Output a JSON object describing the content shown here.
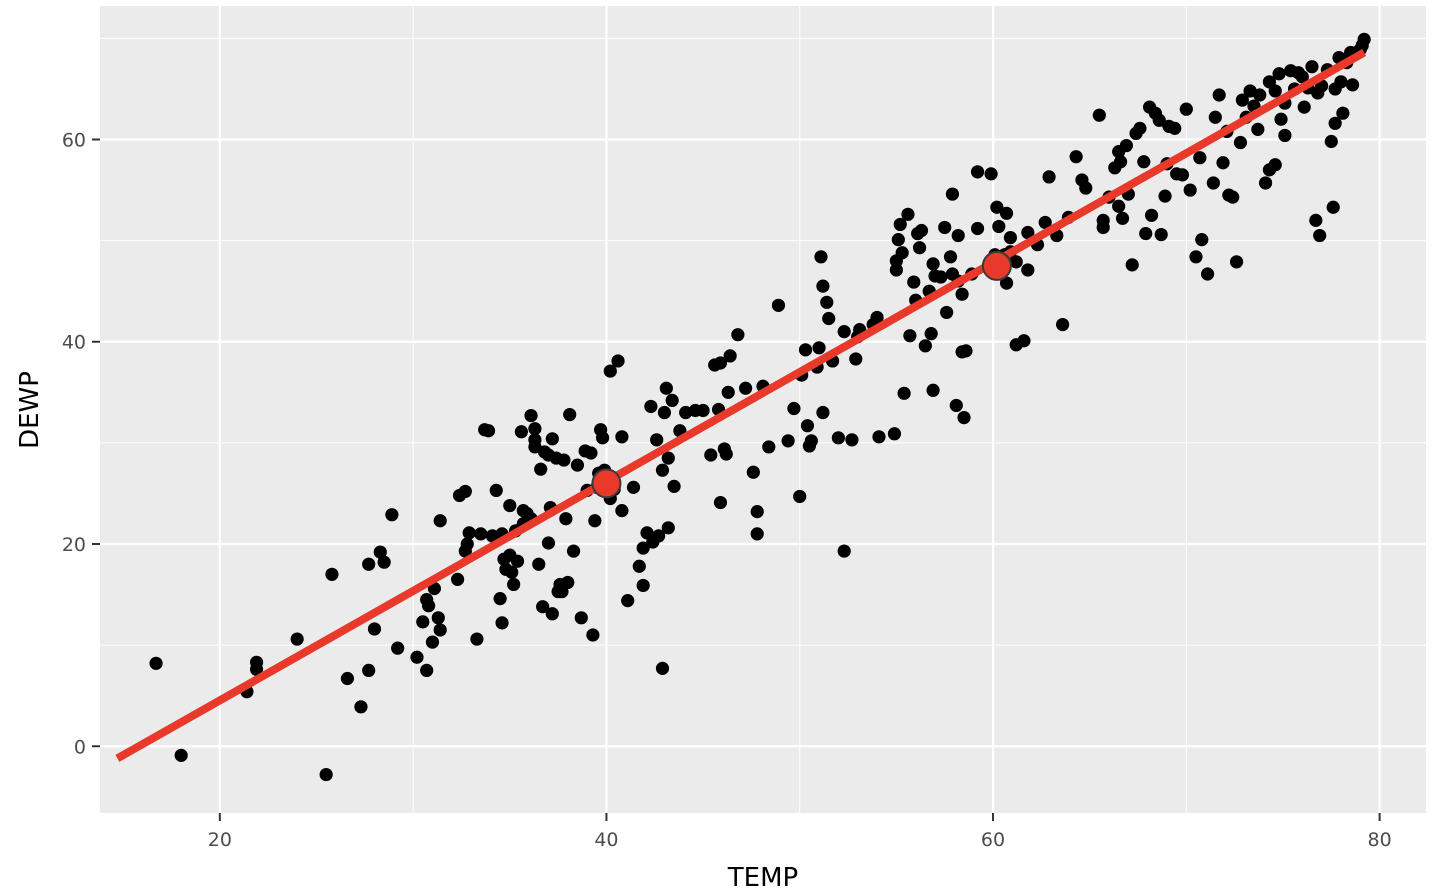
{
  "chart_data": {
    "type": "scatter",
    "title": "",
    "xlabel": "TEMP",
    "ylabel": "DEWP",
    "xlim": [
      13.8,
      82.4
    ],
    "ylim": [
      -6.6,
      73.2
    ],
    "x_ticks": [
      20,
      40,
      60,
      80
    ],
    "y_ticks": [
      0,
      20,
      40,
      60
    ],
    "x_tick_labels": [
      "20",
      "40",
      "60",
      "80"
    ],
    "y_tick_labels": [
      "0",
      "20",
      "40",
      "60"
    ],
    "grid": true,
    "legend": "none",
    "colors": {
      "panel_background": "#ebebeb",
      "grid": "#ffffff",
      "points": "#000000",
      "fit_line": "#e8392a",
      "highlight_points": "#e8392a"
    },
    "fit_line": {
      "x": [
        14.7,
        79.2
      ],
      "y": [
        -1.2,
        68.6
      ]
    },
    "highlight_points": [
      {
        "x": 40.0,
        "y": 26.0
      },
      {
        "x": 60.2,
        "y": 47.5
      }
    ],
    "series": [
      {
        "points": [
          [
            16.7,
            8.2
          ],
          [
            18.0,
            -0.9
          ],
          [
            21.4,
            5.4
          ],
          [
            21.9,
            8.3
          ],
          [
            21.9,
            7.6
          ],
          [
            24.0,
            10.6
          ],
          [
            25.5,
            -2.8
          ],
          [
            25.8,
            17.0
          ],
          [
            26.6,
            6.7
          ],
          [
            27.3,
            3.9
          ],
          [
            27.7,
            18.0
          ],
          [
            27.7,
            7.5
          ],
          [
            28.0,
            11.6
          ],
          [
            28.3,
            19.2
          ],
          [
            28.5,
            18.2
          ],
          [
            28.9,
            22.9
          ],
          [
            29.2,
            9.7
          ],
          [
            30.2,
            8.8
          ],
          [
            30.5,
            12.3
          ],
          [
            30.7,
            14.5
          ],
          [
            30.7,
            7.5
          ],
          [
            30.8,
            13.9
          ],
          [
            31.1,
            15.6
          ],
          [
            31.0,
            10.3
          ],
          [
            31.3,
            12.7
          ],
          [
            31.4,
            11.5
          ],
          [
            31.4,
            22.3
          ],
          [
            32.3,
            16.5
          ],
          [
            32.4,
            24.8
          ],
          [
            32.7,
            25.2
          ],
          [
            32.7,
            19.3
          ],
          [
            32.8,
            20.0
          ],
          [
            32.9,
            21.1
          ],
          [
            33.3,
            10.6
          ],
          [
            33.5,
            21.0
          ],
          [
            33.7,
            31.3
          ],
          [
            33.9,
            31.2
          ],
          [
            34.1,
            20.8
          ],
          [
            34.3,
            25.3
          ],
          [
            34.5,
            14.6
          ],
          [
            34.6,
            21.0
          ],
          [
            34.6,
            12.2
          ],
          [
            34.7,
            18.5
          ],
          [
            34.8,
            17.5
          ],
          [
            35.0,
            23.8
          ],
          [
            35.0,
            18.9
          ],
          [
            35.1,
            17.2
          ],
          [
            35.2,
            16.0
          ],
          [
            35.3,
            21.3
          ],
          [
            35.4,
            18.3
          ],
          [
            35.6,
            31.1
          ],
          [
            35.7,
            22.0
          ],
          [
            35.7,
            23.3
          ],
          [
            35.9,
            23.0
          ],
          [
            36.1,
            22.5
          ],
          [
            36.1,
            32.7
          ],
          [
            36.3,
            31.4
          ],
          [
            36.3,
            29.6
          ],
          [
            36.3,
            30.3
          ],
          [
            36.5,
            18.0
          ],
          [
            36.6,
            27.4
          ],
          [
            36.7,
            13.8
          ],
          [
            36.8,
            29.1
          ],
          [
            37.0,
            28.8
          ],
          [
            37.0,
            20.1
          ],
          [
            37.1,
            23.6
          ],
          [
            37.2,
            13.1
          ],
          [
            37.2,
            30.4
          ],
          [
            37.4,
            28.5
          ],
          [
            37.5,
            15.3
          ],
          [
            37.6,
            16.0
          ],
          [
            37.7,
            15.3
          ],
          [
            37.8,
            28.3
          ],
          [
            37.9,
            22.5
          ],
          [
            38.0,
            16.2
          ],
          [
            38.1,
            32.8
          ],
          [
            38.3,
            19.3
          ],
          [
            38.5,
            27.8
          ],
          [
            38.7,
            12.7
          ],
          [
            38.9,
            29.2
          ],
          [
            39.0,
            25.3
          ],
          [
            39.2,
            29.0
          ],
          [
            39.3,
            11.0
          ],
          [
            39.4,
            22.3
          ],
          [
            39.5,
            25.6
          ],
          [
            39.6,
            27.0
          ],
          [
            39.7,
            31.3
          ],
          [
            39.8,
            30.5
          ],
          [
            39.9,
            27.3
          ],
          [
            40.1,
            26.5
          ],
          [
            40.2,
            24.5
          ],
          [
            40.2,
            37.1
          ],
          [
            40.4,
            25.4
          ],
          [
            40.6,
            38.1
          ],
          [
            40.8,
            23.3
          ],
          [
            40.8,
            30.6
          ],
          [
            41.1,
            14.4
          ],
          [
            41.4,
            25.6
          ],
          [
            41.7,
            17.8
          ],
          [
            41.9,
            19.6
          ],
          [
            41.9,
            15.9
          ],
          [
            42.1,
            21.1
          ],
          [
            42.3,
            33.6
          ],
          [
            42.4,
            20.2
          ],
          [
            42.6,
            30.3
          ],
          [
            42.7,
            20.8
          ],
          [
            42.9,
            27.3
          ],
          [
            42.9,
            7.7
          ],
          [
            43.0,
            33.0
          ],
          [
            43.2,
            21.6
          ],
          [
            43.1,
            35.4
          ],
          [
            43.2,
            28.5
          ],
          [
            43.5,
            25.7
          ],
          [
            43.4,
            34.2
          ],
          [
            43.8,
            31.2
          ],
          [
            44.1,
            33.0
          ],
          [
            44.6,
            33.2
          ],
          [
            45.0,
            33.2
          ],
          [
            45.4,
            28.8
          ],
          [
            45.6,
            37.7
          ],
          [
            45.8,
            33.3
          ],
          [
            45.9,
            24.1
          ],
          [
            45.9,
            37.9
          ],
          [
            46.1,
            29.4
          ],
          [
            46.2,
            28.9
          ],
          [
            46.3,
            35.0
          ],
          [
            46.4,
            38.6
          ],
          [
            46.8,
            40.7
          ],
          [
            47.2,
            35.4
          ],
          [
            47.6,
            27.1
          ],
          [
            47.8,
            23.2
          ],
          [
            47.8,
            21.0
          ],
          [
            48.1,
            35.6
          ],
          [
            48.4,
            29.6
          ],
          [
            48.9,
            43.6
          ],
          [
            49.4,
            30.2
          ],
          [
            49.7,
            33.4
          ],
          [
            50.0,
            24.7
          ],
          [
            50.1,
            36.7
          ],
          [
            50.3,
            39.2
          ],
          [
            50.4,
            31.7
          ],
          [
            50.5,
            29.7
          ],
          [
            50.6,
            30.2
          ],
          [
            50.9,
            37.5
          ],
          [
            51.0,
            39.4
          ],
          [
            51.2,
            33.0
          ],
          [
            51.1,
            48.4
          ],
          [
            51.2,
            45.5
          ],
          [
            51.4,
            43.9
          ],
          [
            51.5,
            42.3
          ],
          [
            51.7,
            38.1
          ],
          [
            52.0,
            30.5
          ],
          [
            52.3,
            41.0
          ],
          [
            52.3,
            19.3
          ],
          [
            52.7,
            30.3
          ],
          [
            52.9,
            38.3
          ],
          [
            53.0,
            40.5
          ],
          [
            53.1,
            41.2
          ],
          [
            53.8,
            41.7
          ],
          [
            54.0,
            42.4
          ],
          [
            54.1,
            30.6
          ],
          [
            54.9,
            30.9
          ],
          [
            55.0,
            47.1
          ],
          [
            55.0,
            48.0
          ],
          [
            55.1,
            50.1
          ],
          [
            55.2,
            51.6
          ],
          [
            55.3,
            48.8
          ],
          [
            55.4,
            34.9
          ],
          [
            55.6,
            52.6
          ],
          [
            55.7,
            40.6
          ],
          [
            55.9,
            45.9
          ],
          [
            56.0,
            44.1
          ],
          [
            56.1,
            50.7
          ],
          [
            56.2,
            49.3
          ],
          [
            56.3,
            51.0
          ],
          [
            56.5,
            39.6
          ],
          [
            56.7,
            45.0
          ],
          [
            56.8,
            40.8
          ],
          [
            56.9,
            47.7
          ],
          [
            56.9,
            35.2
          ],
          [
            57.0,
            46.5
          ],
          [
            57.3,
            46.4
          ],
          [
            57.5,
            51.3
          ],
          [
            57.6,
            42.9
          ],
          [
            57.8,
            48.4
          ],
          [
            57.9,
            46.7
          ],
          [
            57.9,
            54.6
          ],
          [
            58.1,
            33.7
          ],
          [
            58.2,
            46.0
          ],
          [
            58.2,
            50.5
          ],
          [
            58.4,
            39.0
          ],
          [
            58.4,
            44.7
          ],
          [
            58.5,
            32.5
          ],
          [
            58.6,
            39.1
          ],
          [
            58.9,
            46.7
          ],
          [
            59.2,
            51.2
          ],
          [
            59.2,
            56.8
          ],
          [
            59.9,
            56.6
          ],
          [
            60.1,
            48.6
          ],
          [
            60.2,
            53.3
          ],
          [
            60.3,
            51.4
          ],
          [
            60.4,
            46.7
          ],
          [
            60.6,
            48.6
          ],
          [
            60.7,
            45.8
          ],
          [
            60.7,
            52.7
          ],
          [
            60.9,
            48.9
          ],
          [
            60.9,
            50.3
          ],
          [
            61.2,
            47.9
          ],
          [
            61.2,
            39.7
          ],
          [
            61.6,
            40.1
          ],
          [
            61.8,
            47.1
          ],
          [
            61.8,
            50.8
          ],
          [
            62.3,
            49.6
          ],
          [
            62.7,
            51.8
          ],
          [
            62.9,
            56.3
          ],
          [
            63.3,
            50.5
          ],
          [
            63.6,
            41.7
          ],
          [
            63.9,
            52.3
          ],
          [
            64.3,
            58.3
          ],
          [
            64.6,
            56.0
          ],
          [
            64.8,
            55.2
          ],
          [
            65.5,
            62.4
          ],
          [
            65.7,
            52.0
          ],
          [
            65.7,
            51.3
          ],
          [
            66.0,
            54.3
          ],
          [
            66.3,
            57.2
          ],
          [
            66.5,
            58.8
          ],
          [
            66.5,
            53.4
          ],
          [
            66.6,
            57.8
          ],
          [
            66.7,
            52.2
          ],
          [
            66.9,
            59.4
          ],
          [
            67.0,
            54.6
          ],
          [
            67.2,
            47.6
          ],
          [
            67.4,
            60.6
          ],
          [
            67.6,
            61.1
          ],
          [
            67.8,
            57.8
          ],
          [
            67.9,
            50.7
          ],
          [
            68.1,
            63.2
          ],
          [
            68.2,
            52.5
          ],
          [
            68.4,
            62.6
          ],
          [
            68.6,
            61.9
          ],
          [
            68.7,
            50.6
          ],
          [
            68.9,
            54.4
          ],
          [
            69.0,
            57.6
          ],
          [
            69.1,
            61.3
          ],
          [
            69.4,
            61.1
          ],
          [
            69.5,
            56.6
          ],
          [
            69.8,
            56.5
          ],
          [
            70.0,
            63.0
          ],
          [
            70.2,
            55.0
          ],
          [
            70.5,
            48.4
          ],
          [
            70.7,
            58.2
          ],
          [
            70.8,
            50.1
          ],
          [
            71.1,
            46.7
          ],
          [
            71.4,
            55.7
          ],
          [
            71.5,
            62.2
          ],
          [
            71.9,
            57.7
          ],
          [
            72.1,
            60.8
          ],
          [
            72.2,
            54.5
          ],
          [
            72.4,
            54.3
          ],
          [
            72.6,
            47.9
          ],
          [
            72.8,
            59.7
          ],
          [
            73.1,
            62.2
          ],
          [
            73.3,
            64.8
          ],
          [
            73.5,
            63.3
          ],
          [
            73.8,
            64.4
          ],
          [
            74.1,
            55.7
          ],
          [
            74.3,
            65.7
          ],
          [
            74.6,
            64.8
          ],
          [
            74.8,
            66.5
          ],
          [
            75.1,
            63.6
          ],
          [
            75.4,
            66.8
          ],
          [
            75.6,
            65.0
          ],
          [
            75.8,
            66.6
          ],
          [
            76.1,
            63.2
          ],
          [
            76.3,
            65.1
          ],
          [
            76.5,
            67.2
          ],
          [
            76.7,
            52.0
          ],
          [
            76.8,
            64.6
          ],
          [
            77.0,
            65.3
          ],
          [
            77.3,
            66.9
          ],
          [
            77.6,
            53.3
          ],
          [
            77.7,
            65.0
          ],
          [
            77.9,
            68.1
          ],
          [
            78.1,
            62.6
          ],
          [
            78.5,
            68.6
          ],
          [
            78.9,
            68.7
          ],
          [
            79.1,
            69.3
          ],
          [
            79.2,
            69.9
          ],
          [
            74.3,
            57.0
          ],
          [
            74.6,
            57.5
          ],
          [
            75.1,
            60.4
          ],
          [
            76.9,
            50.5
          ],
          [
            77.5,
            59.8
          ],
          [
            77.7,
            61.6
          ],
          [
            78.0,
            65.7
          ],
          [
            78.3,
            67.6
          ],
          [
            79.0,
            68.9
          ],
          [
            78.6,
            65.4
          ],
          [
            76.0,
            66.2
          ],
          [
            74.9,
            62.0
          ],
          [
            73.7,
            61.0
          ],
          [
            72.9,
            63.9
          ],
          [
            71.7,
            64.4
          ]
        ]
      }
    ]
  }
}
